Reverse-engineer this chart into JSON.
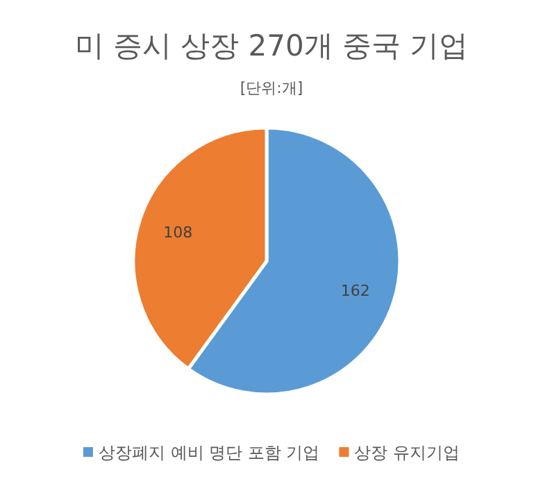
{
  "chart_data": {
    "type": "pie",
    "title": "미 증시 상장 270개 중국 기업",
    "subtitle": "[단위:개]",
    "categories": [
      "상장폐지 예비 명단 포함 기업",
      "상장 유지기업"
    ],
    "values": [
      162,
      108
    ],
    "colors": [
      "#5b9bd5",
      "#ed7d31"
    ],
    "data_labels": true,
    "legend": "bottom"
  }
}
